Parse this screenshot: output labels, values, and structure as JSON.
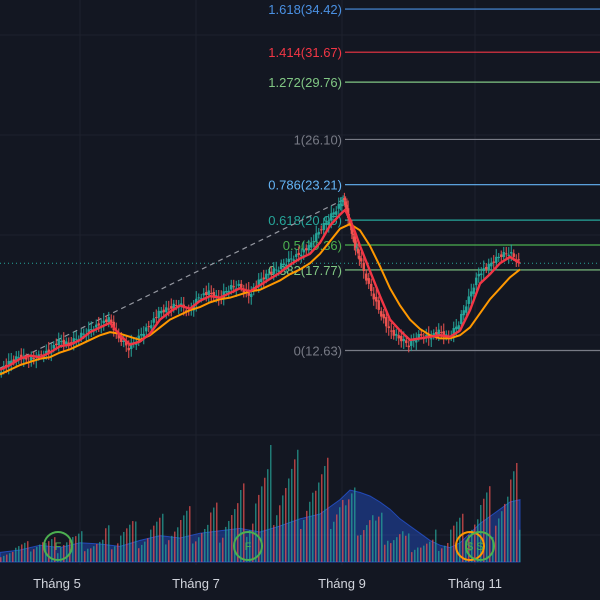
{
  "chart_data": {
    "type": "candlestick",
    "y_range": [
      5,
      35
    ],
    "fib_levels": [
      {
        "ratio": "1.618",
        "price": "34.42",
        "color": "#4a90e2"
      },
      {
        "ratio": "1.414",
        "price": "31.67",
        "color": "#f23645"
      },
      {
        "ratio": "1.272",
        "price": "29.76",
        "color": "#81c784"
      },
      {
        "ratio": "1",
        "price": "26.10",
        "color": "#787b86"
      },
      {
        "ratio": "0.786",
        "price": "23.21",
        "color": "#64b5f6"
      },
      {
        "ratio": "0.618",
        "price": "20.95",
        "color": "#26a69a"
      },
      {
        "ratio": "0.5",
        "price": "19.36",
        "color": "#4caf50"
      },
      {
        "ratio": "0.382",
        "price": "17.77",
        "color": "#81c784"
      },
      {
        "ratio": "0",
        "price": "12.63",
        "color": "#787b86"
      }
    ],
    "x_labels": [
      "Tháng 5",
      "Tháng 7",
      "Tháng 9",
      "Tháng 11"
    ],
    "current_price": 18.2,
    "ma_fast": [
      [
        0,
        11.4
      ],
      [
        10,
        11.7
      ],
      [
        20,
        12.1
      ],
      [
        30,
        12.3
      ],
      [
        40,
        12.2
      ],
      [
        50,
        12.5
      ],
      [
        60,
        12.9
      ],
      [
        70,
        13.0
      ],
      [
        80,
        13.3
      ],
      [
        90,
        13.8
      ],
      [
        100,
        14.1
      ],
      [
        110,
        14.4
      ],
      [
        120,
        13.6
      ],
      [
        130,
        13.0
      ],
      [
        140,
        13.2
      ],
      [
        150,
        13.7
      ],
      [
        160,
        14.6
      ],
      [
        170,
        15.1
      ],
      [
        180,
        15.5
      ],
      [
        190,
        15.3
      ],
      [
        200,
        15.8
      ],
      [
        210,
        16.1
      ],
      [
        220,
        16.0
      ],
      [
        230,
        16.3
      ],
      [
        240,
        16.6
      ],
      [
        250,
        16.4
      ],
      [
        260,
        16.8
      ],
      [
        270,
        17.2
      ],
      [
        280,
        17.6
      ],
      [
        290,
        18.1
      ],
      [
        300,
        18.5
      ],
      [
        310,
        18.8
      ],
      [
        320,
        19.5
      ],
      [
        330,
        20.6
      ],
      [
        340,
        21.3
      ],
      [
        345,
        21.6
      ],
      [
        350,
        21.0
      ],
      [
        355,
        20.2
      ],
      [
        360,
        19.3
      ],
      [
        370,
        17.7
      ],
      [
        380,
        16.1
      ],
      [
        390,
        14.6
      ],
      [
        400,
        13.9
      ],
      [
        410,
        13.3
      ],
      [
        420,
        13.4
      ],
      [
        430,
        13.5
      ],
      [
        440,
        13.6
      ],
      [
        450,
        13.5
      ],
      [
        460,
        13.9
      ],
      [
        470,
        15.2
      ],
      [
        480,
        16.9
      ],
      [
        490,
        17.5
      ],
      [
        500,
        18.2
      ],
      [
        510,
        18.6
      ],
      [
        520,
        18.2
      ]
    ],
    "ma_slow": [
      [
        0,
        11.1
      ],
      [
        10,
        11.4
      ],
      [
        20,
        11.7
      ],
      [
        30,
        11.9
      ],
      [
        40,
        12.1
      ],
      [
        50,
        12.2
      ],
      [
        60,
        12.5
      ],
      [
        70,
        12.7
      ],
      [
        80,
        13.0
      ],
      [
        90,
        13.3
      ],
      [
        100,
        13.6
      ],
      [
        110,
        13.8
      ],
      [
        120,
        13.7
      ],
      [
        130,
        13.5
      ],
      [
        140,
        13.3
      ],
      [
        150,
        13.6
      ],
      [
        160,
        14.1
      ],
      [
        170,
        14.6
      ],
      [
        180,
        14.9
      ],
      [
        190,
        15.2
      ],
      [
        200,
        15.4
      ],
      [
        210,
        15.7
      ],
      [
        220,
        15.9
      ],
      [
        230,
        16.0
      ],
      [
        240,
        16.2
      ],
      [
        250,
        16.4
      ],
      [
        260,
        16.5
      ],
      [
        270,
        16.8
      ],
      [
        280,
        17.1
      ],
      [
        290,
        17.5
      ],
      [
        300,
        17.8
      ],
      [
        310,
        18.2
      ],
      [
        320,
        18.8
      ],
      [
        330,
        19.6
      ],
      [
        340,
        20.4
      ],
      [
        350,
        20.7
      ],
      [
        360,
        20.3
      ],
      [
        370,
        19.3
      ],
      [
        380,
        18.0
      ],
      [
        390,
        16.6
      ],
      [
        400,
        15.5
      ],
      [
        410,
        14.6
      ],
      [
        420,
        14.0
      ],
      [
        430,
        13.6
      ],
      [
        440,
        13.4
      ],
      [
        450,
        13.4
      ],
      [
        460,
        13.6
      ],
      [
        470,
        14.1
      ],
      [
        480,
        15.0
      ],
      [
        490,
        15.9
      ],
      [
        500,
        16.6
      ],
      [
        510,
        17.3
      ],
      [
        520,
        17.8
      ]
    ],
    "candles_close": [
      [
        0,
        11.3
      ],
      [
        10,
        11.8
      ],
      [
        20,
        12.2
      ],
      [
        30,
        12.0
      ],
      [
        40,
        12.3
      ],
      [
        50,
        12.6
      ],
      [
        60,
        13.2
      ],
      [
        70,
        13.0
      ],
      [
        80,
        13.5
      ],
      [
        90,
        13.9
      ],
      [
        100,
        14.3
      ],
      [
        110,
        14.6
      ],
      [
        120,
        13.4
      ],
      [
        130,
        12.8
      ],
      [
        140,
        13.5
      ],
      [
        150,
        14.2
      ],
      [
        160,
        15.0
      ],
      [
        170,
        15.3
      ],
      [
        180,
        15.6
      ],
      [
        190,
        15.1
      ],
      [
        200,
        16.1
      ],
      [
        210,
        16.3
      ],
      [
        220,
        15.9
      ],
      [
        230,
        16.6
      ],
      [
        240,
        16.8
      ],
      [
        250,
        16.2
      ],
      [
        260,
        17.0
      ],
      [
        270,
        17.5
      ],
      [
        280,
        17.9
      ],
      [
        290,
        18.4
      ],
      [
        300,
        18.8
      ],
      [
        310,
        19.2
      ],
      [
        320,
        20.2
      ],
      [
        330,
        21.0
      ],
      [
        340,
        21.9
      ],
      [
        345,
        22.3
      ],
      [
        350,
        20.8
      ],
      [
        355,
        19.5
      ],
      [
        360,
        18.6
      ],
      [
        370,
        16.8
      ],
      [
        380,
        15.3
      ],
      [
        390,
        13.9
      ],
      [
        400,
        13.4
      ],
      [
        410,
        13.0
      ],
      [
        420,
        13.6
      ],
      [
        430,
        13.5
      ],
      [
        440,
        13.8
      ],
      [
        450,
        13.4
      ],
      [
        460,
        14.4
      ],
      [
        470,
        16.0
      ],
      [
        480,
        17.6
      ],
      [
        490,
        18.0
      ],
      [
        500,
        18.6
      ],
      [
        510,
        18.9
      ],
      [
        520,
        18.3
      ]
    ],
    "volume": [
      [
        0,
        8
      ],
      [
        20,
        10
      ],
      [
        40,
        14
      ],
      [
        60,
        12
      ],
      [
        80,
        16
      ],
      [
        100,
        15
      ],
      [
        120,
        13
      ],
      [
        140,
        18
      ],
      [
        160,
        22
      ],
      [
        180,
        20
      ],
      [
        200,
        24
      ],
      [
        220,
        26
      ],
      [
        240,
        28
      ],
      [
        260,
        25
      ],
      [
        280,
        30
      ],
      [
        300,
        36
      ],
      [
        320,
        40
      ],
      [
        340,
        52
      ],
      [
        350,
        60
      ],
      [
        360,
        58
      ],
      [
        370,
        55
      ],
      [
        380,
        50
      ],
      [
        390,
        44
      ],
      [
        400,
        36
      ],
      [
        410,
        30
      ],
      [
        420,
        24
      ],
      [
        430,
        18
      ],
      [
        440,
        14
      ],
      [
        450,
        12
      ],
      [
        460,
        16
      ],
      [
        470,
        24
      ],
      [
        480,
        32
      ],
      [
        490,
        38
      ],
      [
        500,
        44
      ],
      [
        510,
        50
      ],
      [
        520,
        52
      ]
    ],
    "markers": [
      "F",
      "F",
      "$",
      "S"
    ]
  }
}
